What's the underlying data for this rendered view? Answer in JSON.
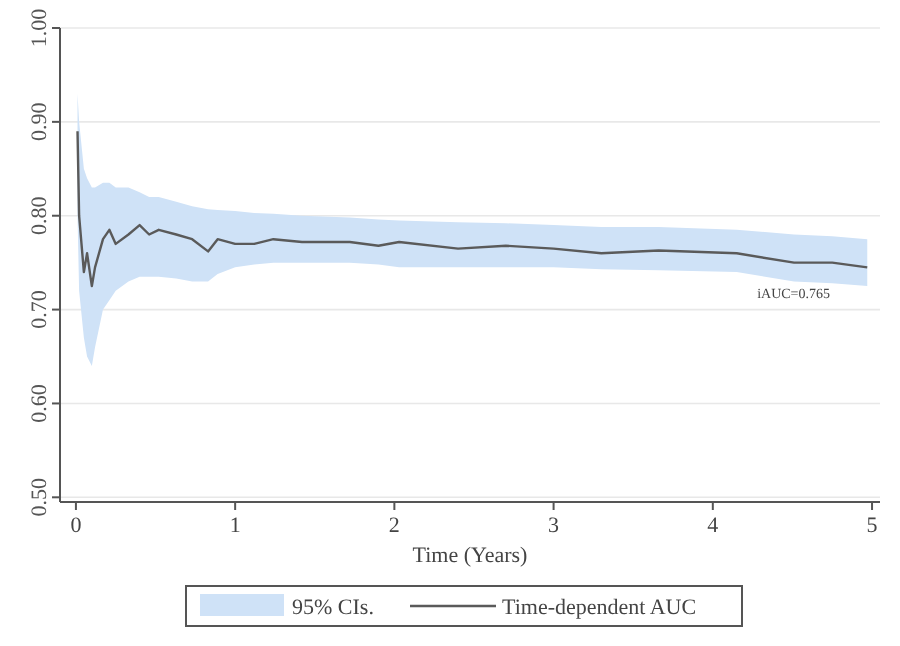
{
  "chart_data": {
    "type": "line",
    "xlabel": "Time (Years)",
    "xlim": [
      -0.1,
      5.05
    ],
    "xticks": [
      0,
      1,
      2,
      3,
      4,
      5
    ],
    "ylim": [
      0.495,
      1.0
    ],
    "yticks": [
      {
        "value": 0.5,
        "label": "0.50"
      },
      {
        "value": 0.6,
        "label": "0.60"
      },
      {
        "value": 0.7,
        "label": "0.70"
      },
      {
        "value": 0.8,
        "label": "0.80"
      },
      {
        "value": 0.9,
        "label": "0.90"
      },
      {
        "value": 1.0,
        "label": "1.00"
      }
    ],
    "grid": "y",
    "legend": "bottom",
    "annotations": [
      "iAUC=0.765",
      "95% CIs."
    ],
    "series": [
      {
        "name": "Time-dependent AUC",
        "color": "#5a5a5a",
        "x": [
          0.01,
          0.02,
          0.05,
          0.07,
          0.1,
          0.12,
          0.17,
          0.21,
          0.25,
          0.33,
          0.4,
          0.46,
          0.52,
          0.63,
          0.73,
          0.83,
          0.89,
          1.0,
          1.12,
          1.24,
          1.42,
          1.72,
          1.9,
          2.03,
          2.4,
          2.7,
          3.0,
          3.3,
          3.66,
          4.15,
          4.51,
          4.75,
          4.97
        ],
        "values": [
          0.89,
          0.8,
          0.74,
          0.76,
          0.725,
          0.745,
          0.775,
          0.785,
          0.77,
          0.78,
          0.79,
          0.78,
          0.785,
          0.78,
          0.775,
          0.762,
          0.775,
          0.77,
          0.77,
          0.775,
          0.772,
          0.772,
          0.768,
          0.772,
          0.765,
          0.768,
          0.765,
          0.76,
          0.763,
          0.76,
          0.75,
          0.75,
          0.745
        ],
        "upper": [
          0.93,
          0.9,
          0.85,
          0.84,
          0.83,
          0.83,
          0.835,
          0.835,
          0.83,
          0.83,
          0.825,
          0.82,
          0.82,
          0.815,
          0.81,
          0.807,
          0.806,
          0.805,
          0.803,
          0.802,
          0.8,
          0.798,
          0.796,
          0.795,
          0.793,
          0.792,
          0.79,
          0.788,
          0.788,
          0.785,
          0.78,
          0.778,
          0.775
        ],
        "lower": [
          0.8,
          0.72,
          0.67,
          0.65,
          0.64,
          0.66,
          0.7,
          0.71,
          0.72,
          0.73,
          0.735,
          0.735,
          0.735,
          0.733,
          0.73,
          0.73,
          0.738,
          0.745,
          0.748,
          0.75,
          0.75,
          0.75,
          0.748,
          0.745,
          0.745,
          0.745,
          0.745,
          0.743,
          0.742,
          0.74,
          0.73,
          0.728,
          0.725
        ]
      }
    ]
  }
}
